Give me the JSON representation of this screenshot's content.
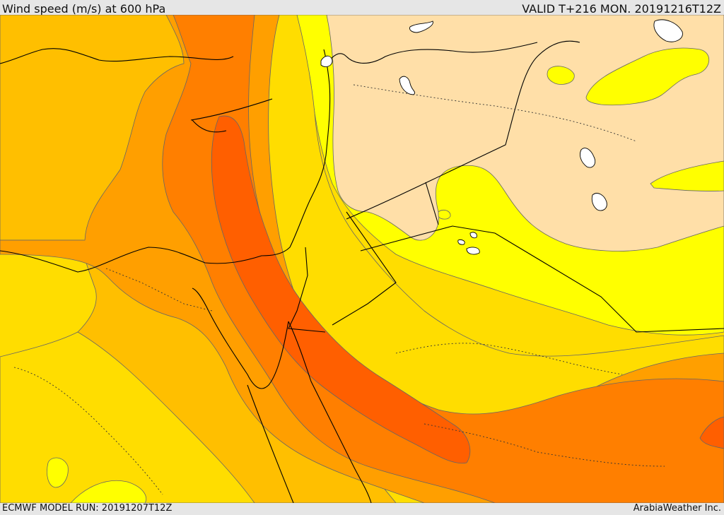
{
  "header": {
    "title": "Wind speed (m/s) at 600 hPa",
    "valid_time": "VALID T+216 MON. 20191216T12Z"
  },
  "footer": {
    "model_run": "ECMWF MODEL RUN: 20191207T12Z",
    "credit": "ArabiaWeather Inc."
  },
  "colors": {
    "band_lightest": "#ffdfa8",
    "band_yellow": "#ffff00",
    "band_gold": "#ffdd00",
    "band_amber": "#ffbf00",
    "band_orange": "#ff9f00",
    "band_dark_orange": "#ff7f00",
    "band_red_orange": "#ff5f00",
    "water": "#ffffff",
    "coastline": "#000000"
  }
}
